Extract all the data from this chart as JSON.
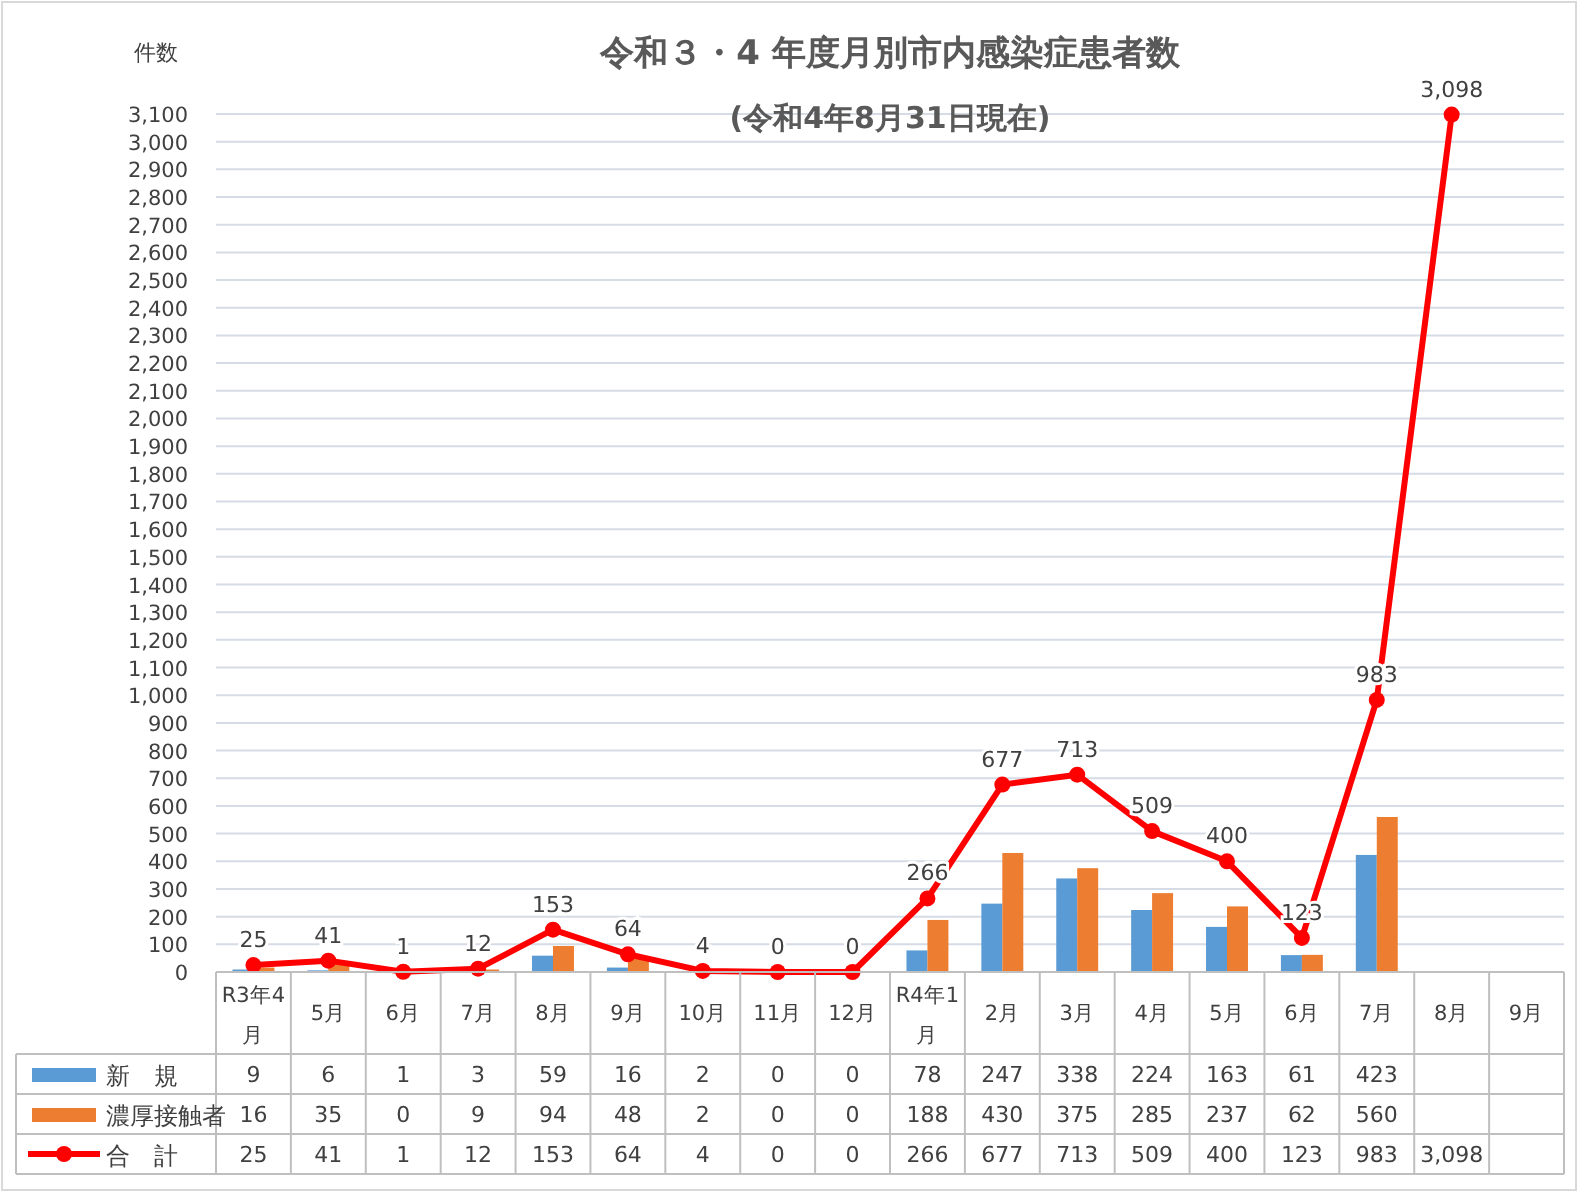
{
  "chart_data": {
    "type": "bar",
    "title": "令和３・4 年度月別市内感染症患者数",
    "subtitle": "(令和4年8月31日現在)",
    "ylabel": "件数",
    "categories": [
      "R3年4月",
      "5月",
      "6月",
      "7月",
      "8月",
      "9月",
      "10月",
      "11月",
      "12月",
      "R4年1月",
      "2月",
      "3月",
      "4月",
      "5月",
      "6月",
      "7月",
      "8月",
      "9月"
    ],
    "series": [
      {
        "name": "新　規",
        "type": "bar",
        "color": "#5b9bd5",
        "values": [
          9,
          6,
          1,
          3,
          59,
          16,
          2,
          0,
          0,
          78,
          247,
          338,
          224,
          163,
          61,
          423,
          null,
          null
        ],
        "value_labels": [
          "9",
          "6",
          "1",
          "3",
          "59",
          "16",
          "2",
          "0",
          "0",
          "78",
          "247",
          "338",
          "224",
          "163",
          "61",
          "423",
          null,
          null
        ]
      },
      {
        "name": "濃厚接触者",
        "type": "bar",
        "color": "#ed7d31",
        "values": [
          16,
          35,
          0,
          9,
          94,
          48,
          2,
          0,
          0,
          188,
          430,
          375,
          285,
          237,
          62,
          560,
          null,
          null
        ],
        "value_labels": [
          "16",
          "35",
          "0",
          "9",
          "94",
          "48",
          "2",
          "0",
          "0",
          "188",
          "430",
          "375",
          "285",
          "237",
          "62",
          "560",
          null,
          null
        ]
      },
      {
        "name": "合　計",
        "type": "line",
        "color": "#ff0000",
        "marker": "circle",
        "line_style": "solid",
        "values": [
          25,
          41,
          1,
          12,
          153,
          64,
          4,
          0,
          0,
          266,
          677,
          713,
          509,
          400,
          123,
          983,
          3098,
          null
        ],
        "value_labels": [
          "25",
          "41",
          "1",
          "12",
          "153",
          "64",
          "4",
          "0",
          "0",
          "266",
          "677",
          "713",
          "509",
          "400",
          "123",
          "983",
          "3,098",
          null
        ]
      }
    ],
    "ylim": [
      0,
      3100
    ],
    "yticks": [
      0,
      100,
      200,
      300,
      400,
      500,
      600,
      700,
      800,
      900,
      {
        "value": 1000,
        "label": "1,000"
      },
      {
        "value": 1100,
        "label": "1,100"
      },
      {
        "value": 1200,
        "label": "1,200"
      },
      {
        "value": 1300,
        "label": "1,300"
      },
      {
        "value": 1400,
        "label": "1,400"
      },
      {
        "value": 1500,
        "label": "1,500"
      },
      {
        "value": 1600,
        "label": "1,600"
      },
      {
        "value": 1700,
        "label": "1,700"
      },
      {
        "value": 1800,
        "label": "1,800"
      },
      {
        "value": 1900,
        "label": "1,900"
      },
      {
        "value": 2000,
        "label": "2,000"
      },
      {
        "value": 2100,
        "label": "2,100"
      },
      {
        "value": 2200,
        "label": "2,200"
      },
      {
        "value": 2300,
        "label": "2,300"
      },
      {
        "value": 2400,
        "label": "2,400"
      },
      {
        "value": 2500,
        "label": "2,500"
      },
      {
        "value": 2600,
        "label": "2,600"
      },
      {
        "value": 2700,
        "label": "2,700"
      },
      {
        "value": 2800,
        "label": "2,800"
      },
      {
        "value": 2900,
        "label": "2,900"
      },
      {
        "value": 3000,
        "label": "3,000"
      },
      {
        "value": 3100,
        "label": "3,100"
      }
    ],
    "grid": "y",
    "legend": "bottom"
  }
}
